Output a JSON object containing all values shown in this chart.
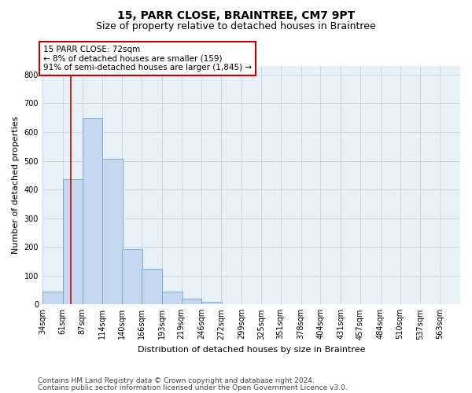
{
  "title": "15, PARR CLOSE, BRAINTREE, CM7 9PT",
  "subtitle": "Size of property relative to detached houses in Braintree",
  "xlabel": "Distribution of detached houses by size in Braintree",
  "ylabel": "Number of detached properties",
  "bar_color": "#c5d8ef",
  "bar_edge_color": "#7aadd4",
  "grid_color": "#c8d8ea",
  "background_color": "#e8f0f8",
  "bins": [
    "34sqm",
    "61sqm",
    "87sqm",
    "114sqm",
    "140sqm",
    "166sqm",
    "193sqm",
    "219sqm",
    "246sqm",
    "272sqm",
    "299sqm",
    "325sqm",
    "351sqm",
    "378sqm",
    "404sqm",
    "431sqm",
    "457sqm",
    "484sqm",
    "510sqm",
    "537sqm",
    "563sqm"
  ],
  "bin_edges": [
    34,
    61,
    87,
    114,
    140,
    166,
    193,
    219,
    246,
    272,
    299,
    325,
    351,
    378,
    404,
    431,
    457,
    484,
    510,
    537,
    563
  ],
  "bar_heights": [
    45,
    435,
    650,
    508,
    193,
    125,
    45,
    20,
    8,
    0,
    0,
    0,
    0,
    0,
    0,
    0,
    0,
    0,
    0,
    0
  ],
  "annotation_text": "15 PARR CLOSE: 72sqm\n← 8% of detached houses are smaller (159)\n91% of semi-detached houses are larger (1,845) →",
  "annotation_box_color": "#ffffff",
  "annotation_box_edge_color": "#cc0000",
  "red_line_color": "#cc0000",
  "red_line_x": 72,
  "ylim": [
    0,
    830
  ],
  "yticks": [
    0,
    100,
    200,
    300,
    400,
    500,
    600,
    700,
    800
  ],
  "footnote1": "Contains HM Land Registry data © Crown copyright and database right 2024.",
  "footnote2": "Contains public sector information licensed under the Open Government Licence v3.0.",
  "title_fontsize": 10,
  "subtitle_fontsize": 9,
  "axis_label_fontsize": 8,
  "tick_fontsize": 7,
  "annotation_fontsize": 7.5,
  "footnote_fontsize": 6.5
}
